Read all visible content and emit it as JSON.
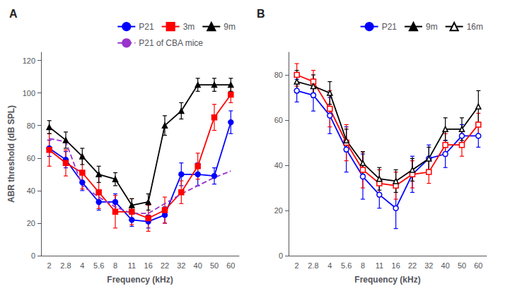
{
  "chart_data": [
    {
      "type": "line",
      "title": "A",
      "xlabel": "Frequency (kHz)",
      "ylabel": "ABR threshold (dB SPL)",
      "categories": [
        "2",
        "2.8",
        "4",
        "5.6",
        "8",
        "11",
        "16",
        "22",
        "32",
        "40",
        "50",
        "60"
      ],
      "series": [
        {
          "name": "P21",
          "color": "#0000FF",
          "marker": "circle",
          "line_style": "solid",
          "values": [
            66,
            59,
            45,
            33,
            33,
            22,
            21,
            25,
            50,
            50,
            49,
            82
          ],
          "yerr": [
            5,
            5,
            5,
            5,
            5,
            4,
            4,
            5,
            7,
            7,
            5,
            7
          ]
        },
        {
          "name": "3m",
          "color": "#FF0000",
          "marker": "square",
          "line_style": "solid",
          "values": [
            65,
            57,
            51,
            39,
            27,
            27,
            23,
            28,
            39,
            55,
            85,
            99
          ],
          "yerr": [
            10,
            8,
            10,
            10,
            10,
            8,
            8,
            8,
            7,
            8,
            8,
            5
          ]
        },
        {
          "name": "9m",
          "color": "#000000",
          "marker": "triangle",
          "line_style": "solid",
          "values": [
            79,
            71,
            61,
            50,
            47,
            31,
            33,
            80,
            89,
            105,
            105,
            105
          ],
          "yerr": [
            4,
            5,
            5,
            5,
            4,
            4,
            5,
            6,
            5,
            4,
            4,
            4
          ]
        },
        {
          "name": "P21 of CBA mice",
          "color": "#9933CC",
          "line_style": "dashed",
          "values": [
            72,
            70,
            43,
            36,
            30,
            26,
            26,
            32,
            38,
            43,
            48,
            52
          ]
        }
      ],
      "ylim": [
        0,
        125
      ],
      "yticks": [
        0,
        20,
        40,
        60,
        80,
        100,
        120
      ],
      "grid": false,
      "legend": "upper right"
    },
    {
      "type": "line",
      "title": "B",
      "xlabel": "Frequency (kHz)",
      "categories": [
        "2",
        "2.8",
        "4",
        "5.6",
        "8",
        "11",
        "16",
        "22",
        "32",
        "40",
        "50",
        "60"
      ],
      "series": [
        {
          "name": "P21",
          "color": "#0000FF",
          "marker": "circle-open",
          "line_style": "solid",
          "values": [
            73,
            71,
            62,
            47,
            35,
            27,
            21,
            36,
            43,
            45,
            53,
            53
          ],
          "yerr": [
            5,
            7,
            8,
            10,
            10,
            6,
            9,
            8,
            6,
            6,
            5,
            5
          ]
        },
        {
          "name": "9m",
          "color": "#FF0000",
          "marker": "square-open",
          "line_style": "solid",
          "values": [
            80,
            77,
            65,
            50,
            38,
            32,
            31,
            36,
            37,
            49,
            49,
            58
          ],
          "yerr": [
            5,
            5,
            8,
            8,
            8,
            6,
            6,
            6,
            5,
            5,
            5,
            5
          ]
        },
        {
          "name": "16m",
          "color": "#000000",
          "marker": "triangle-open",
          "line_style": "solid",
          "values": [
            77,
            75,
            72,
            51,
            41,
            34,
            33,
            38,
            43,
            56,
            56,
            66
          ],
          "yerr": [
            5,
            5,
            5,
            5,
            5,
            5,
            5,
            5,
            5,
            5,
            5,
            7
          ]
        }
      ],
      "ylim": [
        0,
        90
      ],
      "yticks": [
        0,
        20,
        40,
        60,
        80
      ],
      "grid": false,
      "legend": "upper right"
    }
  ]
}
